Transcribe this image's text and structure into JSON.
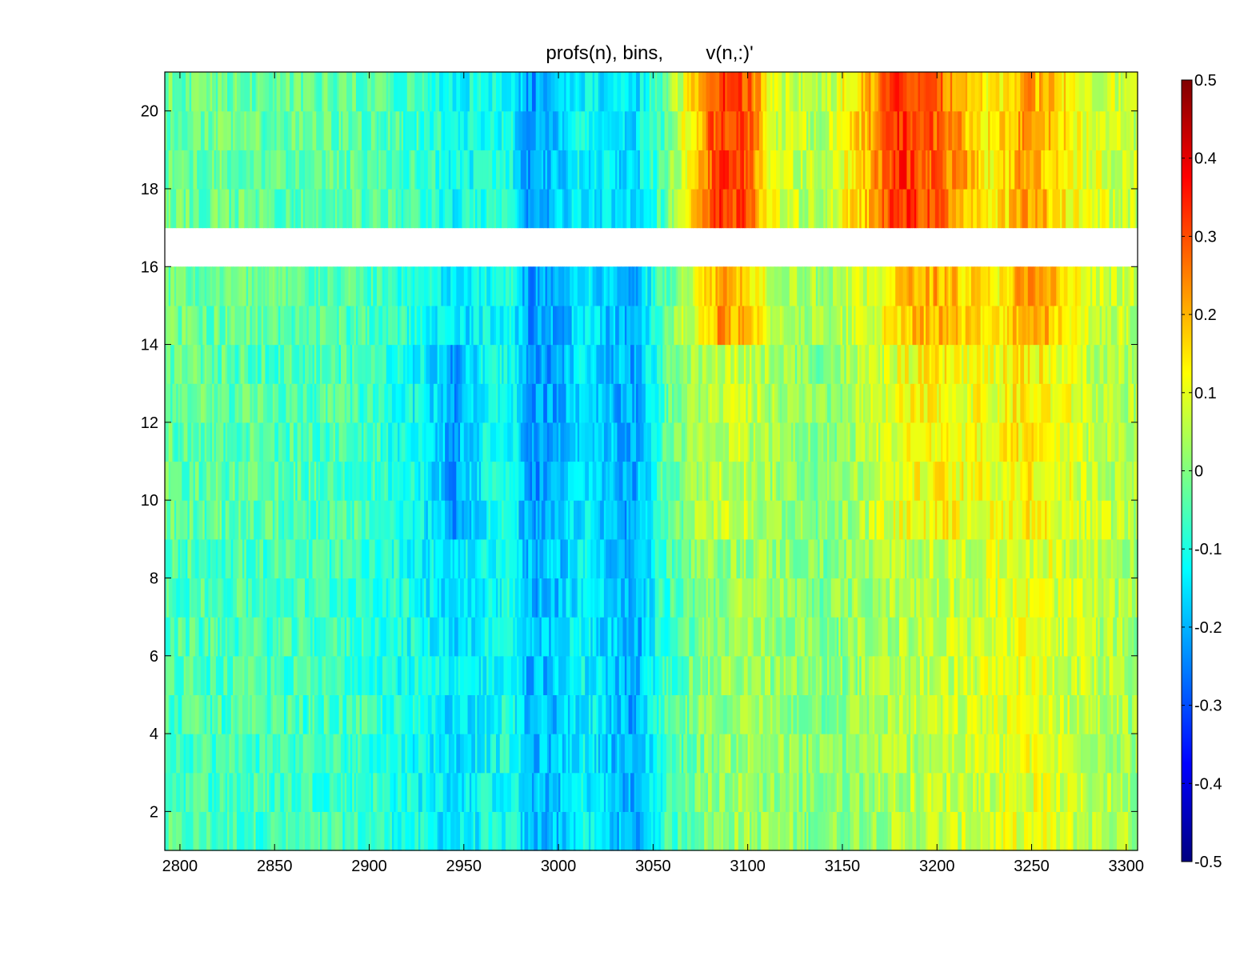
{
  "chart_data": {
    "type": "heatmap",
    "title": "profs(n), bins,        v(n,:)'",
    "xlabel": "",
    "ylabel": "",
    "xlim": [
      2792,
      3306
    ],
    "ylim": [
      1,
      21
    ],
    "x_ticks": [
      2800,
      2850,
      2900,
      2950,
      3000,
      3050,
      3100,
      3150,
      3200,
      3250,
      3300
    ],
    "y_ticks": [
      2,
      4,
      6,
      8,
      10,
      12,
      14,
      16,
      18,
      20
    ],
    "colormap": "jet",
    "clim": [
      -0.5,
      0.5
    ],
    "colorbar_ticks": [
      -0.5,
      -0.4,
      -0.3,
      -0.2,
      -0.1,
      0,
      0.1,
      0.2,
      0.3,
      0.4,
      0.5
    ],
    "colorbar_tick_labels": [
      "-0.5",
      "-0.4",
      "-0.3",
      "-0.2",
      "-0.1",
      "0",
      "0.1",
      "0.2",
      "0.3",
      "0.4",
      "0.5"
    ],
    "rows": 20,
    "missing_rows": [
      16
    ],
    "bin_width": 1,
    "profile_x": [
      2792,
      2900,
      2935,
      2945,
      2960,
      2975,
      2985,
      3000,
      3012,
      3025,
      3040,
      3055,
      3075,
      3085,
      3100,
      3115,
      3140,
      3165,
      3180,
      3200,
      3230,
      3245,
      3260,
      3280,
      3300,
      3306
    ],
    "profile_mean_by_row": [
      {
        "rows": [
          1,
          8
        ],
        "values": [
          -0.05,
          -0.07,
          -0.13,
          -0.15,
          -0.12,
          -0.1,
          -0.2,
          -0.18,
          -0.12,
          -0.16,
          -0.22,
          -0.08,
          0.0,
          0.02,
          0.03,
          0.02,
          0.0,
          0.03,
          0.05,
          0.06,
          0.08,
          0.1,
          0.09,
          0.06,
          0.04,
          0.03
        ]
      },
      {
        "rows": [
          9,
          13
        ],
        "values": [
          -0.03,
          -0.06,
          -0.15,
          -0.22,
          -0.13,
          -0.1,
          -0.24,
          -0.2,
          -0.14,
          -0.17,
          -0.22,
          -0.05,
          0.04,
          0.07,
          0.06,
          0.03,
          0.0,
          0.06,
          0.1,
          0.13,
          0.1,
          0.14,
          0.12,
          0.07,
          0.05,
          0.04
        ]
      },
      {
        "rows": [
          14,
          15
        ],
        "values": [
          -0.02,
          -0.05,
          -0.12,
          -0.16,
          -0.12,
          -0.1,
          -0.23,
          -0.2,
          -0.15,
          -0.17,
          -0.22,
          -0.04,
          0.12,
          0.22,
          0.18,
          0.06,
          0.03,
          0.08,
          0.17,
          0.21,
          0.12,
          0.22,
          0.2,
          0.08,
          0.06,
          0.05
        ]
      },
      {
        "rows": [
          17,
          21
        ],
        "values": [
          -0.02,
          -0.04,
          -0.08,
          -0.12,
          -0.1,
          -0.1,
          -0.23,
          -0.18,
          -0.12,
          -0.14,
          -0.16,
          -0.04,
          0.2,
          0.33,
          0.3,
          0.08,
          0.05,
          0.2,
          0.34,
          0.28,
          0.12,
          0.22,
          0.18,
          0.1,
          0.07,
          0.06
        ]
      }
    ]
  }
}
